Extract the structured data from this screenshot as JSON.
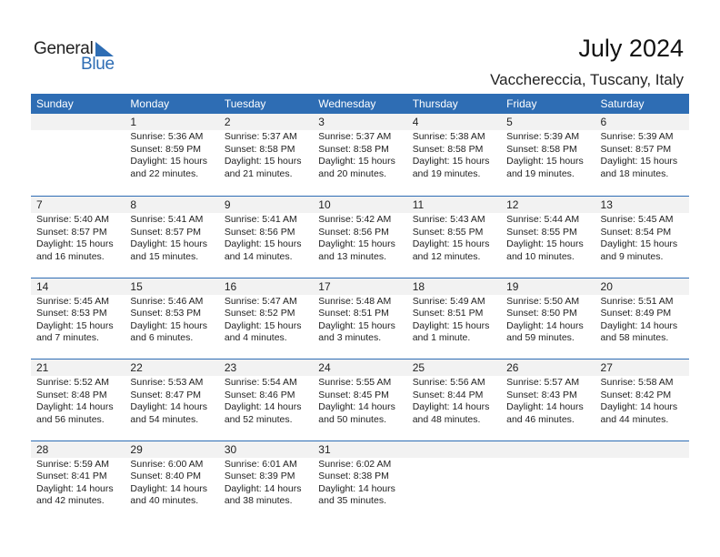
{
  "logo": {
    "word1": "General",
    "word2": "Blue",
    "accent": "#2e6db4"
  },
  "title": "July 2024",
  "location": "Vacchereccia, Tuscany, Italy",
  "days_of_week": [
    "Sunday",
    "Monday",
    "Tuesday",
    "Wednesday",
    "Thursday",
    "Friday",
    "Saturday"
  ],
  "weeks": [
    [
      null,
      {
        "day": "1",
        "sunrise": "Sunrise: 5:36 AM",
        "sunset": "Sunset: 8:59 PM",
        "daylight1": "Daylight: 15 hours",
        "daylight2": "and 22 minutes."
      },
      {
        "day": "2",
        "sunrise": "Sunrise: 5:37 AM",
        "sunset": "Sunset: 8:58 PM",
        "daylight1": "Daylight: 15 hours",
        "daylight2": "and 21 minutes."
      },
      {
        "day": "3",
        "sunrise": "Sunrise: 5:37 AM",
        "sunset": "Sunset: 8:58 PM",
        "daylight1": "Daylight: 15 hours",
        "daylight2": "and 20 minutes."
      },
      {
        "day": "4",
        "sunrise": "Sunrise: 5:38 AM",
        "sunset": "Sunset: 8:58 PM",
        "daylight1": "Daylight: 15 hours",
        "daylight2": "and 19 minutes."
      },
      {
        "day": "5",
        "sunrise": "Sunrise: 5:39 AM",
        "sunset": "Sunset: 8:58 PM",
        "daylight1": "Daylight: 15 hours",
        "daylight2": "and 19 minutes."
      },
      {
        "day": "6",
        "sunrise": "Sunrise: 5:39 AM",
        "sunset": "Sunset: 8:57 PM",
        "daylight1": "Daylight: 15 hours",
        "daylight2": "and 18 minutes."
      }
    ],
    [
      {
        "day": "7",
        "sunrise": "Sunrise: 5:40 AM",
        "sunset": "Sunset: 8:57 PM",
        "daylight1": "Daylight: 15 hours",
        "daylight2": "and 16 minutes."
      },
      {
        "day": "8",
        "sunrise": "Sunrise: 5:41 AM",
        "sunset": "Sunset: 8:57 PM",
        "daylight1": "Daylight: 15 hours",
        "daylight2": "and 15 minutes."
      },
      {
        "day": "9",
        "sunrise": "Sunrise: 5:41 AM",
        "sunset": "Sunset: 8:56 PM",
        "daylight1": "Daylight: 15 hours",
        "daylight2": "and 14 minutes."
      },
      {
        "day": "10",
        "sunrise": "Sunrise: 5:42 AM",
        "sunset": "Sunset: 8:56 PM",
        "daylight1": "Daylight: 15 hours",
        "daylight2": "and 13 minutes."
      },
      {
        "day": "11",
        "sunrise": "Sunrise: 5:43 AM",
        "sunset": "Sunset: 8:55 PM",
        "daylight1": "Daylight: 15 hours",
        "daylight2": "and 12 minutes."
      },
      {
        "day": "12",
        "sunrise": "Sunrise: 5:44 AM",
        "sunset": "Sunset: 8:55 PM",
        "daylight1": "Daylight: 15 hours",
        "daylight2": "and 10 minutes."
      },
      {
        "day": "13",
        "sunrise": "Sunrise: 5:45 AM",
        "sunset": "Sunset: 8:54 PM",
        "daylight1": "Daylight: 15 hours",
        "daylight2": "and 9 minutes."
      }
    ],
    [
      {
        "day": "14",
        "sunrise": "Sunrise: 5:45 AM",
        "sunset": "Sunset: 8:53 PM",
        "daylight1": "Daylight: 15 hours",
        "daylight2": "and 7 minutes."
      },
      {
        "day": "15",
        "sunrise": "Sunrise: 5:46 AM",
        "sunset": "Sunset: 8:53 PM",
        "daylight1": "Daylight: 15 hours",
        "daylight2": "and 6 minutes."
      },
      {
        "day": "16",
        "sunrise": "Sunrise: 5:47 AM",
        "sunset": "Sunset: 8:52 PM",
        "daylight1": "Daylight: 15 hours",
        "daylight2": "and 4 minutes."
      },
      {
        "day": "17",
        "sunrise": "Sunrise: 5:48 AM",
        "sunset": "Sunset: 8:51 PM",
        "daylight1": "Daylight: 15 hours",
        "daylight2": "and 3 minutes."
      },
      {
        "day": "18",
        "sunrise": "Sunrise: 5:49 AM",
        "sunset": "Sunset: 8:51 PM",
        "daylight1": "Daylight: 15 hours",
        "daylight2": "and 1 minute."
      },
      {
        "day": "19",
        "sunrise": "Sunrise: 5:50 AM",
        "sunset": "Sunset: 8:50 PM",
        "daylight1": "Daylight: 14 hours",
        "daylight2": "and 59 minutes."
      },
      {
        "day": "20",
        "sunrise": "Sunrise: 5:51 AM",
        "sunset": "Sunset: 8:49 PM",
        "daylight1": "Daylight: 14 hours",
        "daylight2": "and 58 minutes."
      }
    ],
    [
      {
        "day": "21",
        "sunrise": "Sunrise: 5:52 AM",
        "sunset": "Sunset: 8:48 PM",
        "daylight1": "Daylight: 14 hours",
        "daylight2": "and 56 minutes."
      },
      {
        "day": "22",
        "sunrise": "Sunrise: 5:53 AM",
        "sunset": "Sunset: 8:47 PM",
        "daylight1": "Daylight: 14 hours",
        "daylight2": "and 54 minutes."
      },
      {
        "day": "23",
        "sunrise": "Sunrise: 5:54 AM",
        "sunset": "Sunset: 8:46 PM",
        "daylight1": "Daylight: 14 hours",
        "daylight2": "and 52 minutes."
      },
      {
        "day": "24",
        "sunrise": "Sunrise: 5:55 AM",
        "sunset": "Sunset: 8:45 PM",
        "daylight1": "Daylight: 14 hours",
        "daylight2": "and 50 minutes."
      },
      {
        "day": "25",
        "sunrise": "Sunrise: 5:56 AM",
        "sunset": "Sunset: 8:44 PM",
        "daylight1": "Daylight: 14 hours",
        "daylight2": "and 48 minutes."
      },
      {
        "day": "26",
        "sunrise": "Sunrise: 5:57 AM",
        "sunset": "Sunset: 8:43 PM",
        "daylight1": "Daylight: 14 hours",
        "daylight2": "and 46 minutes."
      },
      {
        "day": "27",
        "sunrise": "Sunrise: 5:58 AM",
        "sunset": "Sunset: 8:42 PM",
        "daylight1": "Daylight: 14 hours",
        "daylight2": "and 44 minutes."
      }
    ],
    [
      {
        "day": "28",
        "sunrise": "Sunrise: 5:59 AM",
        "sunset": "Sunset: 8:41 PM",
        "daylight1": "Daylight: 14 hours",
        "daylight2": "and 42 minutes."
      },
      {
        "day": "29",
        "sunrise": "Sunrise: 6:00 AM",
        "sunset": "Sunset: 8:40 PM",
        "daylight1": "Daylight: 14 hours",
        "daylight2": "and 40 minutes."
      },
      {
        "day": "30",
        "sunrise": "Sunrise: 6:01 AM",
        "sunset": "Sunset: 8:39 PM",
        "daylight1": "Daylight: 14 hours",
        "daylight2": "and 38 minutes."
      },
      {
        "day": "31",
        "sunrise": "Sunrise: 6:02 AM",
        "sunset": "Sunset: 8:38 PM",
        "daylight1": "Daylight: 14 hours",
        "daylight2": "and 35 minutes."
      },
      null,
      null,
      null
    ]
  ]
}
